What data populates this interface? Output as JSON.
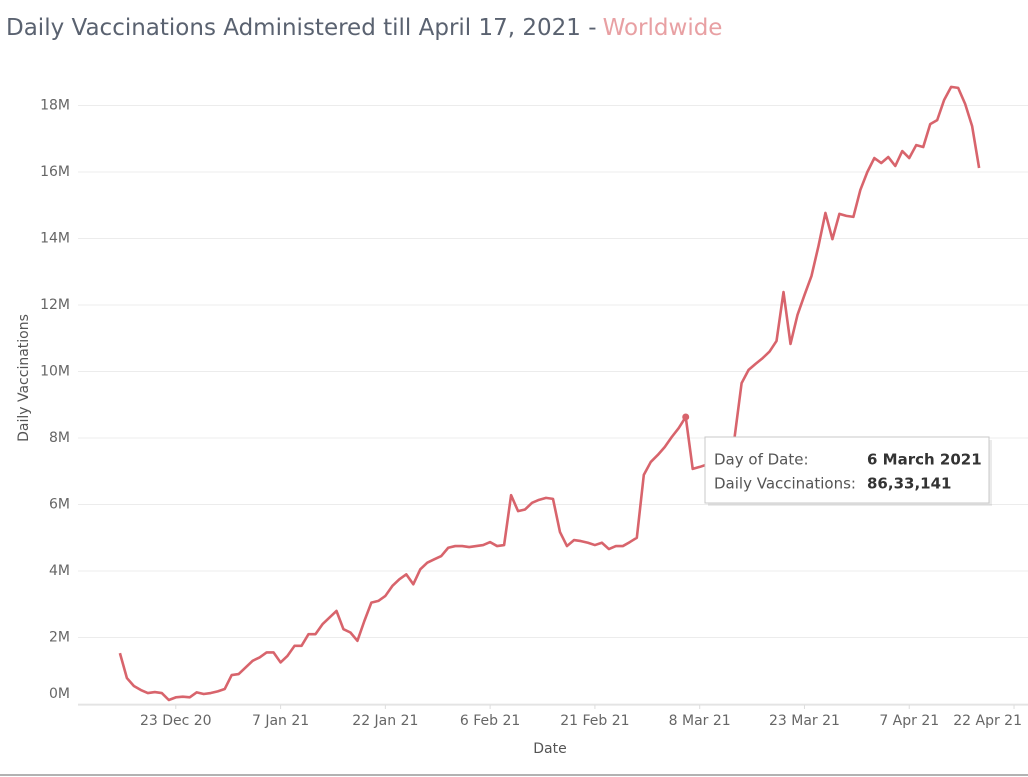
{
  "chart_data": {
    "type": "line",
    "title": "Daily Vaccinations Administered till April 17, 2021 -",
    "title_highlight": "Worldwide",
    "xlabel": "Date",
    "ylabel": "Daily Vaccinations",
    "color": "#d8646c",
    "grid": true,
    "xlim": [
      "2020-12-09",
      "2021-04-24"
    ],
    "xticks": [
      {
        "value": "2020-12-23",
        "label": "23 Dec 20"
      },
      {
        "value": "2021-01-07",
        "label": "7 Jan 21"
      },
      {
        "value": "2021-01-22",
        "label": "22 Jan 21"
      },
      {
        "value": "2021-02-06",
        "label": "6 Feb 21"
      },
      {
        "value": "2021-02-21",
        "label": "21 Feb 21"
      },
      {
        "value": "2021-03-08",
        "label": "8 Mar 21"
      },
      {
        "value": "2021-03-23",
        "label": "23 Mar 21"
      },
      {
        "value": "2021-04-07",
        "label": "7 Apr 21"
      },
      {
        "value": "2021-04-22",
        "label": "22 Apr 21"
      }
    ],
    "ylim": [
      0,
      20000000
    ],
    "yticks": [
      {
        "value": 0,
        "label": "0M"
      },
      {
        "value": 2000000,
        "label": "2M"
      },
      {
        "value": 4000000,
        "label": "4M"
      },
      {
        "value": 6000000,
        "label": "6M"
      },
      {
        "value": 8000000,
        "label": "8M"
      },
      {
        "value": 10000000,
        "label": "10M"
      },
      {
        "value": 12000000,
        "label": "12M"
      },
      {
        "value": 14000000,
        "label": "14M"
      },
      {
        "value": 16000000,
        "label": "16M"
      },
      {
        "value": 18000000,
        "label": "18M"
      }
    ],
    "x": [
      "2020-12-15",
      "2020-12-16",
      "2020-12-17",
      "2020-12-18",
      "2020-12-19",
      "2020-12-20",
      "2020-12-21",
      "2020-12-22",
      "2020-12-23",
      "2020-12-24",
      "2020-12-25",
      "2020-12-26",
      "2020-12-27",
      "2020-12-28",
      "2020-12-29",
      "2020-12-30",
      "2020-12-31",
      "2021-01-01",
      "2021-01-02",
      "2021-01-03",
      "2021-01-04",
      "2021-01-05",
      "2021-01-06",
      "2021-01-07",
      "2021-01-08",
      "2021-01-09",
      "2021-01-10",
      "2021-01-11",
      "2021-01-12",
      "2021-01-13",
      "2021-01-14",
      "2021-01-15",
      "2021-01-16",
      "2021-01-17",
      "2021-01-18",
      "2021-01-19",
      "2021-01-20",
      "2021-01-21",
      "2021-01-22",
      "2021-01-23",
      "2021-01-24",
      "2021-01-25",
      "2021-01-26",
      "2021-01-27",
      "2021-01-28",
      "2021-01-29",
      "2021-01-30",
      "2021-01-31",
      "2021-02-01",
      "2021-02-02",
      "2021-02-03",
      "2021-02-04",
      "2021-02-05",
      "2021-02-06",
      "2021-02-07",
      "2021-02-08",
      "2021-02-09",
      "2021-02-10",
      "2021-02-11",
      "2021-02-12",
      "2021-02-13",
      "2021-02-14",
      "2021-02-15",
      "2021-02-16",
      "2021-02-17",
      "2021-02-18",
      "2021-02-19",
      "2021-02-20",
      "2021-02-21",
      "2021-02-22",
      "2021-02-23",
      "2021-02-24",
      "2021-02-25",
      "2021-02-26",
      "2021-02-27",
      "2021-02-28",
      "2021-03-01",
      "2021-03-02",
      "2021-03-03",
      "2021-03-04",
      "2021-03-05",
      "2021-03-06",
      "2021-03-07",
      "2021-03-08",
      "2021-03-09",
      "2021-03-10",
      "2021-03-11",
      "2021-03-12",
      "2021-03-13",
      "2021-03-14",
      "2021-03-15",
      "2021-03-16",
      "2021-03-17",
      "2021-03-18",
      "2021-03-19",
      "2021-03-20",
      "2021-03-21",
      "2021-03-22",
      "2021-03-23",
      "2021-03-24",
      "2021-03-25",
      "2021-03-26",
      "2021-03-27",
      "2021-03-28",
      "2021-03-29",
      "2021-03-30",
      "2021-03-31",
      "2021-04-01",
      "2021-04-02",
      "2021-04-03",
      "2021-04-04",
      "2021-04-05",
      "2021-04-06",
      "2021-04-07",
      "2021-04-08",
      "2021-04-09",
      "2021-04-10",
      "2021-04-11",
      "2021-04-12",
      "2021-04-13",
      "2021-04-14",
      "2021-04-15",
      "2021-04-16",
      "2021-04-17"
    ],
    "values": [
      1530000,
      780000,
      540000,
      420000,
      330000,
      360000,
      330000,
      120000,
      200000,
      220000,
      200000,
      350000,
      300000,
      330000,
      380000,
      450000,
      870000,
      900000,
      1100000,
      1300000,
      1400000,
      1550000,
      1550000,
      1250000,
      1450000,
      1750000,
      1750000,
      2100000,
      2100000,
      2400000,
      2600000,
      2800000,
      2250000,
      2150000,
      1900000,
      2500000,
      3050000,
      3100000,
      3250000,
      3550000,
      3750000,
      3900000,
      3600000,
      4050000,
      4250000,
      4350000,
      4450000,
      4700000,
      4750000,
      4750000,
      4720000,
      4750000,
      4780000,
      4870000,
      4750000,
      4780000,
      6280000,
      5800000,
      5850000,
      6050000,
      6140000,
      6200000,
      6170000,
      5170000,
      4750000,
      4930000,
      4900000,
      4850000,
      4780000,
      4850000,
      4660000,
      4750000,
      4750000,
      4870000,
      5000000,
      6890000,
      7280000,
      7490000,
      7730000,
      8030000,
      8300000,
      8633141,
      7070000,
      7130000,
      7200000,
      7400000,
      7600000,
      7800000,
      8030000,
      9650000,
      10050000,
      10230000,
      10400000,
      10600000,
      10920000,
      12390000,
      10830000,
      11700000,
      12300000,
      12870000,
      13770000,
      14770000,
      13980000,
      14740000,
      14680000,
      14650000,
      15460000,
      16000000,
      16420000,
      16270000,
      16450000,
      16180000,
      16630000,
      16420000,
      16810000,
      16750000,
      17440000,
      17560000,
      18170000,
      18560000,
      18530000,
      18050000,
      17380000,
      16120000
    ],
    "tooltip": {
      "rows": [
        {
          "label": "Day of Date:",
          "value": "6 March 2021"
        },
        {
          "label": "Daily Vaccinations:",
          "value": {
            "value": 8633141,
            "label": "86,33,141"
          }
        }
      ]
    }
  }
}
